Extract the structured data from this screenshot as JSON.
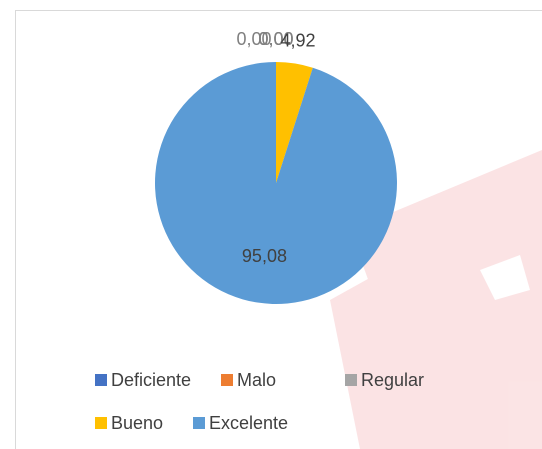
{
  "chart_data": {
    "type": "pie",
    "categories": [
      "Deficiente",
      "Malo",
      "Regular",
      "Bueno",
      "Excelente"
    ],
    "values": [
      0,
      0,
      0,
      4.92,
      95.08
    ],
    "value_labels": [
      "0,00",
      "0,00",
      "0,00",
      "4,92",
      "95,08"
    ],
    "colors": [
      "#4472c4",
      "#ed7d31",
      "#a5a5a5",
      "#ffc000",
      "#5b9bd5"
    ],
    "legend": "bottom"
  }
}
